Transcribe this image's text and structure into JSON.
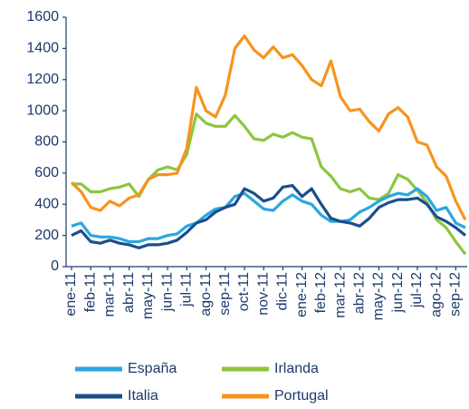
{
  "chart_data": {
    "type": "line",
    "categories": [
      "ene-11",
      null,
      "feb-11",
      null,
      "mar-11",
      null,
      "abr-11",
      null,
      "may-11",
      null,
      "jun-11",
      null,
      "jul-11",
      null,
      "ago-11",
      null,
      "sep-11",
      null,
      "oct-11",
      null,
      "nov-11",
      null,
      "dic-11",
      null,
      "ene-12",
      null,
      "feb-12",
      null,
      "mar-12",
      null,
      "abr-12",
      null,
      "may-12",
      null,
      "jun-12",
      null,
      "jul-12",
      null,
      "ago-12",
      null,
      "sep-12",
      null
    ],
    "series": [
      {
        "name": "España",
        "color": "#2aa7e0",
        "values": [
          260,
          280,
          200,
          190,
          190,
          180,
          160,
          160,
          180,
          180,
          200,
          210,
          260,
          280,
          330,
          370,
          380,
          450,
          470,
          420,
          370,
          360,
          420,
          460,
          420,
          400,
          330,
          290,
          290,
          300,
          350,
          380,
          420,
          450,
          470,
          460,
          500,
          450,
          360,
          380,
          280,
          250
        ]
      },
      {
        "name": "Irlanda",
        "color": "#8cc63f",
        "values": [
          530,
          530,
          480,
          480,
          500,
          510,
          530,
          450,
          560,
          620,
          640,
          620,
          720,
          980,
          920,
          900,
          900,
          970,
          900,
          820,
          810,
          850,
          830,
          860,
          830,
          820,
          640,
          580,
          500,
          480,
          500,
          440,
          430,
          470,
          590,
          560,
          490,
          410,
          300,
          250,
          160,
          80
        ]
      },
      {
        "name": "Italia",
        "color": "#1a4f8b",
        "values": [
          200,
          230,
          160,
          150,
          170,
          150,
          140,
          120,
          140,
          140,
          150,
          170,
          220,
          280,
          300,
          350,
          380,
          400,
          500,
          470,
          420,
          440,
          510,
          520,
          450,
          500,
          400,
          310,
          290,
          280,
          260,
          310,
          380,
          410,
          430,
          430,
          440,
          400,
          320,
          290,
          250,
          200
        ]
      },
      {
        "name": "Portugal",
        "color": "#f7941d",
        "values": [
          540,
          480,
          380,
          360,
          420,
          390,
          440,
          460,
          560,
          590,
          590,
          600,
          760,
          1150,
          1000,
          960,
          1100,
          1400,
          1480,
          1390,
          1340,
          1410,
          1340,
          1360,
          1290,
          1200,
          1160,
          1320,
          1090,
          1000,
          1010,
          930,
          870,
          980,
          1020,
          960,
          800,
          780,
          640,
          580,
          420,
          300
        ]
      }
    ],
    "ylim": [
      0,
      1600
    ],
    "yticks": [
      0,
      200,
      400,
      600,
      800,
      1000,
      1200,
      1400,
      1600
    ],
    "grid": false
  }
}
